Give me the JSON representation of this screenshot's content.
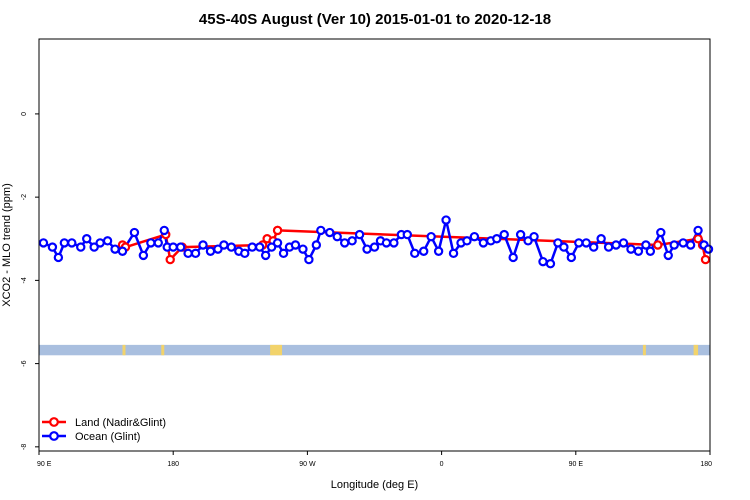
{
  "chart_data": {
    "type": "line",
    "title": "45S-40S August (Ver 10)   2015-01-01 to 2020-12-18",
    "xlabel": "Longitude (deg E)",
    "ylabel": "XCO2 - MLO trend (ppm)",
    "x_tick_values": [
      90,
      180,
      270,
      360,
      450,
      540
    ],
    "x_tick_labels": [
      "90 E",
      "180",
      "90 W",
      "0",
      "90 E",
      "180"
    ],
    "xlim": [
      90,
      540
    ],
    "ylim": [
      -8.1,
      1.8
    ],
    "y_ticks": [
      0,
      -2,
      -4,
      -6,
      -8
    ],
    "y_tick_labels": [
      "0",
      "-2",
      "-4",
      "-6",
      "-8"
    ],
    "grid": false,
    "legend_position": "bottom-left",
    "colors": {
      "land": "#ff0000",
      "ocean": "#0000ff",
      "band_ocean": "#a9bfdf",
      "band_land": "#f2d36b"
    },
    "band": {
      "y_top": -5.55,
      "y_bottom": -5.8,
      "land_ranges": [
        [
          146,
          148
        ],
        [
          172,
          174
        ],
        [
          245,
          253
        ],
        [
          495,
          497
        ],
        [
          529,
          532
        ]
      ]
    },
    "series": [
      {
        "name": "Land (Nadir&Glint)",
        "color": "#ff0000",
        "x": [
          146,
          148,
          175,
          178,
          186,
          240,
          243,
          247,
          250,
          250,
          505,
          532,
          535,
          537
        ],
        "y": [
          -3.15,
          -3.2,
          -2.9,
          -3.5,
          -3.2,
          -3.15,
          -3.0,
          -3.05,
          -2.8,
          -2.8,
          -3.15,
          -3.0,
          -3.15,
          -3.5
        ]
      },
      {
        "name": "Ocean (Glint)",
        "color": "#0000ff",
        "x": [
          93,
          99,
          103,
          107,
          112,
          118,
          122,
          127,
          131,
          136,
          141,
          146,
          154,
          160,
          165,
          170,
          174,
          176,
          180,
          185,
          190,
          195,
          200,
          205,
          210,
          214,
          219,
          224,
          228,
          233,
          238,
          242,
          246,
          250,
          254,
          258,
          262,
          267,
          271,
          276,
          279,
          285,
          290,
          295,
          300,
          305,
          310,
          315,
          319,
          323,
          328,
          333,
          337,
          342,
          348,
          353,
          358,
          363,
          368,
          373,
          377,
          382,
          388,
          393,
          397,
          402,
          408,
          413,
          418,
          422,
          428,
          433,
          438,
          442,
          447,
          452,
          457,
          462,
          467,
          472,
          477,
          482,
          487,
          492,
          497,
          500,
          507,
          512,
          516,
          522,
          527,
          532,
          536,
          539
        ],
        "y": [
          -3.1,
          -3.2,
          -3.45,
          -3.1,
          -3.1,
          -3.2,
          -3.0,
          -3.2,
          -3.1,
          -3.05,
          -3.25,
          -3.3,
          -2.85,
          -3.4,
          -3.1,
          -3.1,
          -2.8,
          -3.2,
          -3.2,
          -3.2,
          -3.35,
          -3.35,
          -3.15,
          -3.3,
          -3.25,
          -3.15,
          -3.2,
          -3.3,
          -3.35,
          -3.2,
          -3.2,
          -3.4,
          -3.2,
          -3.1,
          -3.35,
          -3.2,
          -3.15,
          -3.25,
          -3.5,
          -3.15,
          -2.8,
          -2.85,
          -2.95,
          -3.1,
          -3.05,
          -2.9,
          -3.25,
          -3.2,
          -3.05,
          -3.1,
          -3.1,
          -2.9,
          -2.9,
          -3.35,
          -3.3,
          -2.95,
          -3.3,
          -2.55,
          -3.35,
          -3.1,
          -3.05,
          -2.95,
          -3.1,
          -3.05,
          -3.0,
          -2.9,
          -3.45,
          -2.9,
          -3.05,
          -2.95,
          -3.55,
          -3.6,
          -3.1,
          -3.2,
          -3.45,
          -3.1,
          -3.1,
          -3.2,
          -3.0,
          -3.2,
          -3.15,
          -3.1,
          -3.25,
          -3.3,
          -3.15,
          -3.3,
          -2.85,
          -3.4,
          -3.15,
          -3.1,
          -3.15,
          -2.8,
          -3.15,
          -3.25
        ]
      }
    ]
  }
}
